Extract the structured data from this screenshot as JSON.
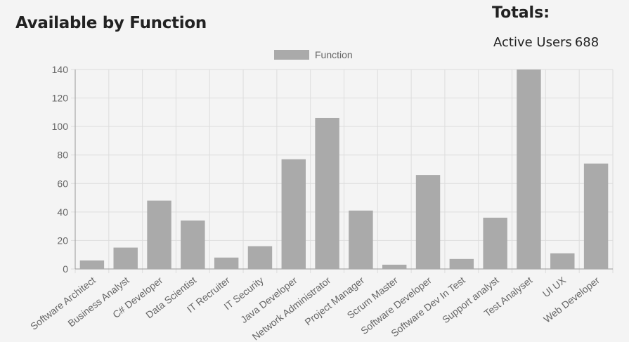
{
  "header": {
    "title": "Available by Function"
  },
  "totals": {
    "title": "Totals:",
    "active_users_label": "Active Users",
    "active_users_value": "688"
  },
  "colors": {
    "bar": "#aaaaaa",
    "grid": "#dddddd",
    "axis": "#999999",
    "text": "#666666"
  },
  "chart_data": {
    "type": "bar",
    "categories": [
      "Software Architect",
      "Business Analyst",
      "C# Developer",
      "Data Scientist",
      "IT Recruiter",
      "IT Security",
      "Java Developer",
      "Network Administrator",
      "Project Manager",
      "Scrum Master",
      "Software Developer",
      "Software Dev In Test",
      "Support analyst",
      "Test Analyset",
      "UI UX",
      "Web Developer"
    ],
    "series": [
      {
        "name": "Function",
        "values": [
          6,
          15,
          48,
          34,
          8,
          16,
          77,
          106,
          41,
          3,
          66,
          7,
          36,
          140,
          11,
          74
        ]
      }
    ],
    "ylim": [
      0,
      140
    ],
    "yticks": [
      0,
      20,
      40,
      60,
      80,
      100,
      120,
      140
    ],
    "grid": true,
    "legend_position": "top-center"
  }
}
